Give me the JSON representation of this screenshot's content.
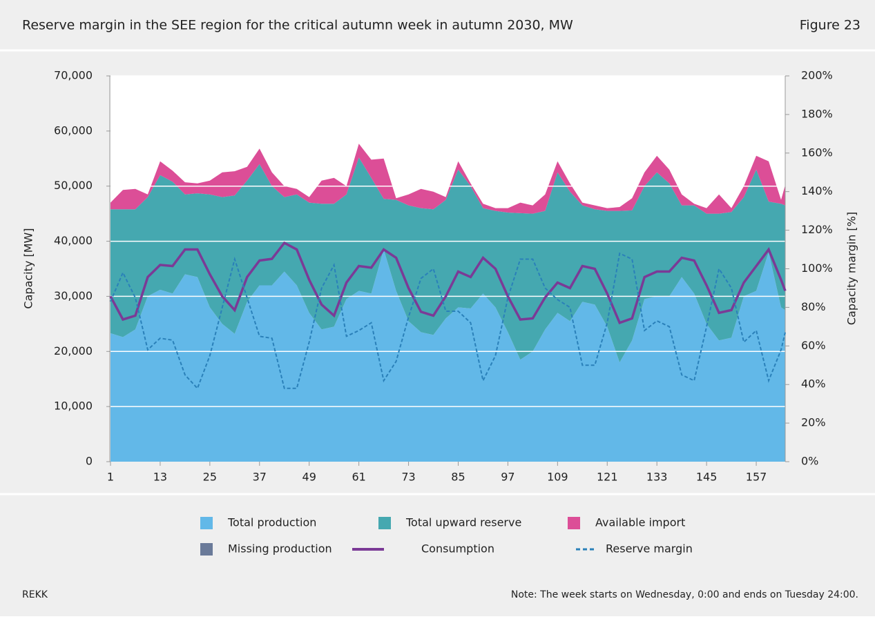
{
  "header": {
    "title": "Reserve margin in the SEE region for the critical autumn week in autumn 2030, MW",
    "figure": "Figure 23"
  },
  "footer": {
    "source": "REKK",
    "note": "Note: The week starts on Wednesday, 0:00 and ends on Tuesday 24:00."
  },
  "chart_data": {
    "type": "area",
    "ylabel": "Capacity [MW]",
    "y2label": "Capacity margin [%]",
    "x": [
      1,
      4,
      7,
      10,
      13,
      16,
      19,
      22,
      25,
      28,
      31,
      34,
      37,
      40,
      43,
      46,
      49,
      52,
      55,
      58,
      61,
      64,
      67,
      70,
      73,
      76,
      79,
      82,
      85,
      88,
      91,
      94,
      97,
      100,
      103,
      106,
      109,
      112,
      115,
      118,
      121,
      124,
      127,
      130,
      133,
      136,
      139,
      142,
      145,
      148,
      151,
      154,
      157,
      160,
      163,
      164
    ],
    "xlim": [
      1,
      164
    ],
    "xticks": [
      1,
      13,
      25,
      37,
      49,
      61,
      73,
      85,
      97,
      109,
      121,
      133,
      145,
      157
    ],
    "ylim": [
      0,
      70000
    ],
    "yticks": [
      0,
      {
        "value": 10000,
        "label": "10,000"
      },
      {
        "value": 20000,
        "label": "20,000"
      },
      {
        "value": 30000,
        "label": "30,000"
      },
      {
        "value": 40000,
        "label": "40,000"
      },
      {
        "value": 50000,
        "label": "50,000"
      },
      {
        "value": 60000,
        "label": "60,000"
      },
      {
        "value": 70000,
        "label": "70,000"
      }
    ],
    "y2lim": [
      0,
      200
    ],
    "y2ticks": [
      {
        "value": 0,
        "label": "0%"
      },
      {
        "value": 20,
        "label": "20%"
      },
      {
        "value": 40,
        "label": "40%"
      },
      {
        "value": 60,
        "label": "60%"
      },
      {
        "value": 80,
        "label": "80%"
      },
      {
        "value": 100,
        "label": "100%"
      },
      {
        "value": 120,
        "label": "120%"
      },
      {
        "value": 140,
        "label": "140%"
      },
      {
        "value": 160,
        "label": "160%"
      },
      {
        "value": 180,
        "label": "180%"
      },
      {
        "value": 200,
        "label": "200%"
      }
    ],
    "grid": true,
    "series": [
      {
        "name": "Total production",
        "color": "#62b8e8",
        "kind": "area",
        "values": [
          23300,
          22600,
          24000,
          30000,
          31200,
          30500,
          34000,
          33500,
          28000,
          25000,
          23200,
          29000,
          32000,
          32000,
          34500,
          32000,
          27000,
          24000,
          24500,
          29500,
          31000,
          30500,
          38500,
          31000,
          25500,
          23500,
          23000,
          26000,
          28000,
          27800,
          30500,
          28000,
          23500,
          18500,
          20000,
          24000,
          27000,
          25500,
          29000,
          28500,
          24500,
          18000,
          22000,
          29500,
          30000,
          30000,
          33500,
          30500,
          25000,
          22000,
          22500,
          30000,
          31000,
          38000,
          28000,
          27500
        ]
      },
      {
        "name": "Total upward reserve",
        "color": "#45a8b0",
        "kind": "area",
        "values": [
          22500,
          23200,
          21800,
          18000,
          20800,
          20300,
          14500,
          15200,
          20500,
          23000,
          25100,
          22000,
          22000,
          18000,
          13500,
          16500,
          20000,
          22800,
          22300,
          19000,
          24200,
          21000,
          9200,
          16500,
          21000,
          22500,
          22800,
          21500,
          25000,
          22200,
          15500,
          17500,
          21700,
          26600,
          25000,
          21500,
          25500,
          23500,
          17500,
          17300,
          21000,
          27500,
          23600,
          20500,
          22500,
          20500,
          13000,
          16000,
          20000,
          23000,
          22800,
          18000,
          22000,
          9200,
          18800,
          19000
        ]
      },
      {
        "name": "Available import",
        "color": "#dc4e97",
        "kind": "area",
        "values": [
          1200,
          3500,
          3700,
          500,
          2500,
          2000,
          2200,
          1800,
          2500,
          4500,
          4400,
          2500,
          2800,
          2500,
          2000,
          1000,
          1000,
          4200,
          4700,
          1500,
          2500,
          3300,
          7300,
          300,
          2000,
          3500,
          3200,
          500,
          1500,
          500,
          800,
          500,
          800,
          1900,
          1500,
          3000,
          2000,
          1500,
          500,
          700,
          500,
          700,
          2200,
          2500,
          3000,
          2500,
          2000,
          300,
          1000,
          3500,
          700,
          2000,
          2500,
          7300,
          700,
          3700
        ]
      },
      {
        "name": "Missing production",
        "color": "#6a7a99",
        "kind": "area",
        "values": [
          0,
          0,
          0,
          0,
          0,
          0,
          0,
          0,
          0,
          0,
          0,
          0,
          0,
          0,
          0,
          0,
          0,
          0,
          0,
          0,
          0,
          0,
          0,
          0,
          0,
          0,
          0,
          0,
          0,
          0,
          0,
          0,
          0,
          0,
          0,
          0,
          0,
          0,
          0,
          0,
          0,
          0,
          0,
          0,
          0,
          0,
          0,
          0,
          0,
          0,
          0,
          0,
          0,
          0,
          0,
          0
        ]
      },
      {
        "name": "Consumption",
        "color": "#7b3a96",
        "kind": "line",
        "values": [
          30000,
          25800,
          26500,
          33500,
          35700,
          35500,
          38500,
          38500,
          34000,
          30000,
          27500,
          33500,
          36500,
          36800,
          39700,
          38500,
          33000,
          28500,
          26500,
          32500,
          35500,
          35200,
          38500,
          37000,
          31500,
          27200,
          26500,
          30000,
          34500,
          33500,
          37000,
          35000,
          30000,
          25800,
          26000,
          29800,
          32500,
          31500,
          35500,
          35000,
          30500,
          25200,
          26000,
          33500,
          34500,
          34500,
          37000,
          36500,
          32000,
          27000,
          27500,
          32500,
          35500,
          38500,
          33000,
          31000
        ]
      },
      {
        "name": "Reserve margin",
        "color": "#2a80b9",
        "kind": "line",
        "dash": true,
        "axis": "y2",
        "values": [
          83,
          98,
          85,
          58,
          64,
          63,
          45,
          38,
          55,
          80,
          105,
          85,
          65,
          64,
          38,
          38,
          62,
          90,
          102,
          65,
          68,
          72,
          42,
          52,
          75,
          95,
          100,
          78,
          78,
          72,
          42,
          55,
          85,
          105,
          105,
          90,
          84,
          80,
          50,
          50,
          72,
          108,
          105,
          68,
          73,
          70,
          45,
          42,
          70,
          100,
          90,
          62,
          68,
          42,
          58,
          67
        ]
      }
    ]
  }
}
